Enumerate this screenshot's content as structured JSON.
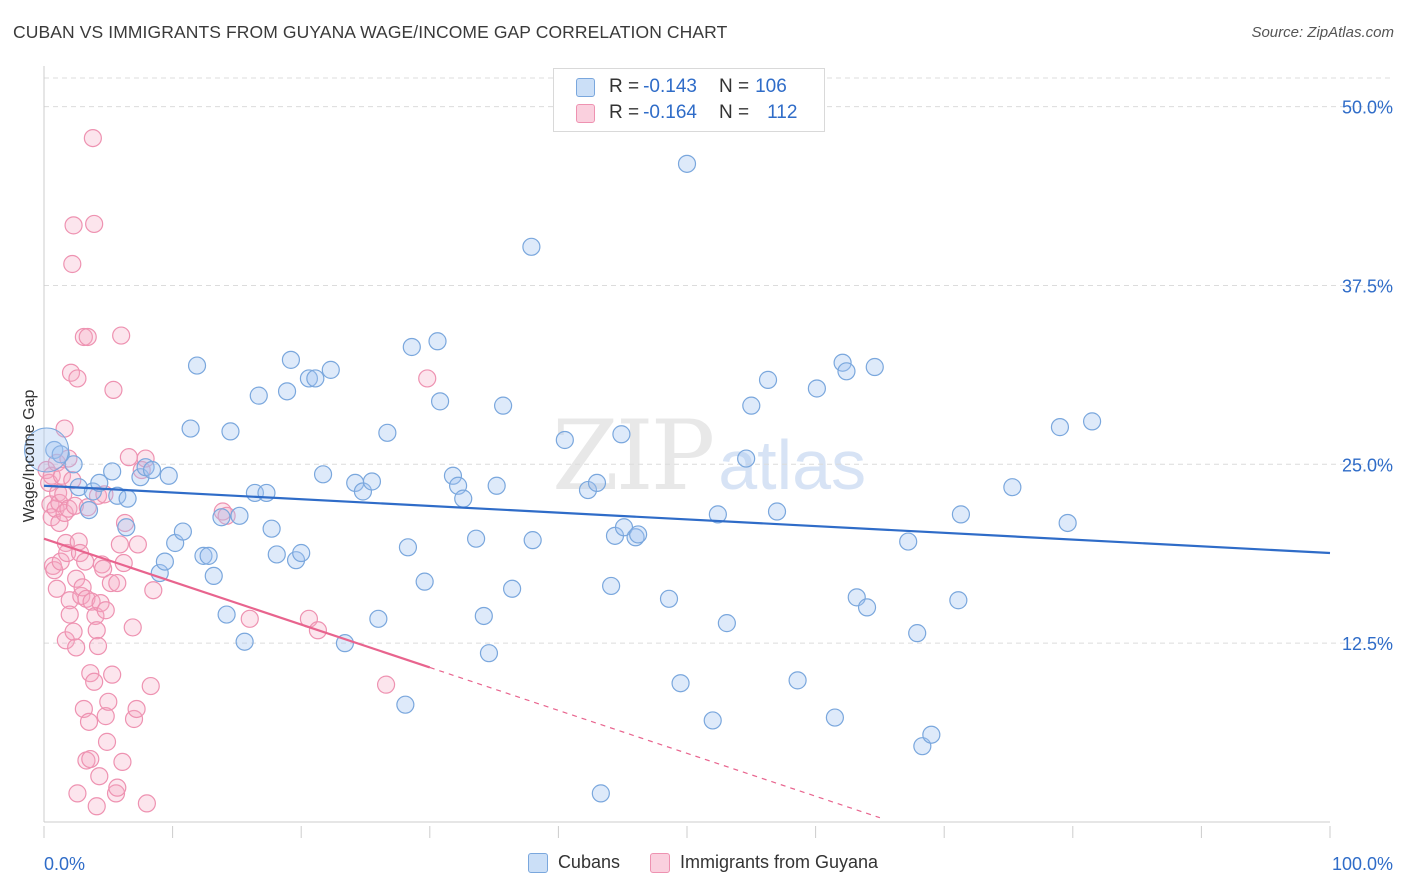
{
  "title": "CUBAN VS IMMIGRANTS FROM GUYANA WAGE/INCOME GAP CORRELATION CHART",
  "source": "Source: ZipAtlas.com",
  "watermark": {
    "zip": "ZIP",
    "atlas": "atlas"
  },
  "colors": {
    "blue": "#2f6cc8",
    "blue_fill": "rgba(160,196,240,0.35)",
    "blue_stroke": "#7aa7dd",
    "pink": "#e8648e",
    "pink_fill": "rgba(245,170,195,0.3)",
    "pink_stroke": "#ee92b1",
    "grid": "#dcdcdc",
    "axis_label": "#2f6cc8"
  },
  "legend_top": {
    "rows": [
      {
        "r_label": "R =",
        "r_value": "-0.143",
        "n_label": "N =",
        "n_value": "106",
        "series": "Cubans"
      },
      {
        "r_label": "R =",
        "r_value": "-0.164",
        "n_label": "N =",
        "n_value": "112",
        "series": "Immigrants from Guyana"
      }
    ]
  },
  "bottom_legend": [
    "Cubans",
    "Immigrants from Guyana"
  ],
  "chart_data": {
    "type": "scatter",
    "title": "CUBAN VS IMMIGRANTS FROM GUYANA WAGE/INCOME GAP CORRELATION CHART",
    "xlabel": "",
    "ylabel": "Wage/Income Gap",
    "xlim": [
      0,
      100
    ],
    "ylim": [
      0,
      52
    ],
    "x_ticks_labels": [
      "0.0%",
      "100.0%"
    ],
    "y_ticks": [
      12.5,
      25.0,
      37.5,
      50.0
    ],
    "y_ticks_labels": [
      "12.5%",
      "25.0%",
      "37.5%",
      "50.0%"
    ],
    "grid": true,
    "legend_position": "top-center",
    "series": [
      {
        "name": "Cubans",
        "color": "#2f6cc8",
        "trend": {
          "x0": 0,
          "y0": 23.5,
          "x1": 100,
          "y1": 18.8
        },
        "points": [
          [
            0.8,
            26.0
          ],
          [
            1.3,
            25.7
          ],
          [
            2.3,
            25.0
          ],
          [
            2.7,
            23.4
          ],
          [
            3.5,
            21.8
          ],
          [
            3.8,
            23.1
          ],
          [
            4.3,
            23.7
          ],
          [
            5.3,
            24.5
          ],
          [
            5.7,
            22.8
          ],
          [
            6.4,
            20.6
          ],
          [
            6.5,
            22.6
          ],
          [
            7.5,
            24.1
          ],
          [
            7.9,
            24.8
          ],
          [
            8.4,
            24.6
          ],
          [
            9.0,
            17.4
          ],
          [
            9.4,
            18.2
          ],
          [
            9.7,
            24.2
          ],
          [
            10.2,
            19.5
          ],
          [
            10.8,
            20.3
          ],
          [
            11.4,
            27.5
          ],
          [
            11.9,
            31.9
          ],
          [
            12.4,
            18.6
          ],
          [
            12.8,
            18.6
          ],
          [
            13.2,
            17.2
          ],
          [
            13.8,
            21.3
          ],
          [
            14.2,
            14.5
          ],
          [
            14.5,
            27.3
          ],
          [
            15.2,
            21.4
          ],
          [
            15.6,
            12.6
          ],
          [
            16.4,
            23.0
          ],
          [
            16.7,
            29.8
          ],
          [
            17.3,
            23.0
          ],
          [
            17.7,
            20.5
          ],
          [
            18.1,
            18.7
          ],
          [
            18.9,
            30.1
          ],
          [
            19.2,
            32.3
          ],
          [
            19.6,
            18.3
          ],
          [
            20.0,
            18.8
          ],
          [
            20.6,
            31.0
          ],
          [
            21.1,
            31.0
          ],
          [
            21.7,
            24.3
          ],
          [
            22.3,
            31.6
          ],
          [
            23.4,
            12.5
          ],
          [
            24.2,
            23.7
          ],
          [
            24.8,
            23.1
          ],
          [
            25.5,
            23.8
          ],
          [
            26.0,
            14.2
          ],
          [
            26.7,
            27.2
          ],
          [
            28.1,
            8.2
          ],
          [
            28.3,
            19.2
          ],
          [
            28.6,
            33.2
          ],
          [
            29.6,
            16.8
          ],
          [
            30.6,
            33.6
          ],
          [
            30.8,
            29.4
          ],
          [
            31.8,
            24.2
          ],
          [
            32.2,
            23.5
          ],
          [
            32.6,
            22.6
          ],
          [
            33.6,
            19.8
          ],
          [
            34.2,
            14.4
          ],
          [
            34.6,
            11.8
          ],
          [
            35.2,
            23.5
          ],
          [
            35.7,
            29.1
          ],
          [
            36.4,
            16.3
          ],
          [
            37.9,
            40.2
          ],
          [
            38.0,
            19.7
          ],
          [
            40.5,
            26.7
          ],
          [
            42.3,
            23.2
          ],
          [
            43.0,
            23.7
          ],
          [
            43.3,
            2.0
          ],
          [
            44.1,
            16.5
          ],
          [
            44.4,
            20.0
          ],
          [
            44.9,
            27.1
          ],
          [
            45.1,
            20.6
          ],
          [
            46.0,
            19.9
          ],
          [
            46.2,
            20.1
          ],
          [
            48.6,
            15.6
          ],
          [
            49.5,
            9.7
          ],
          [
            50.0,
            46.0
          ],
          [
            52.0,
            7.1
          ],
          [
            52.4,
            21.5
          ],
          [
            53.1,
            13.9
          ],
          [
            54.6,
            25.4
          ],
          [
            55.0,
            29.1
          ],
          [
            56.3,
            30.9
          ],
          [
            57.0,
            21.7
          ],
          [
            58.6,
            9.9
          ],
          [
            60.1,
            30.3
          ],
          [
            61.5,
            7.3
          ],
          [
            62.1,
            32.1
          ],
          [
            62.4,
            31.5
          ],
          [
            63.2,
            15.7
          ],
          [
            64.0,
            15.0
          ],
          [
            64.6,
            31.8
          ],
          [
            67.2,
            19.6
          ],
          [
            67.9,
            13.2
          ],
          [
            68.3,
            5.3
          ],
          [
            69.0,
            6.1
          ],
          [
            71.1,
            15.5
          ],
          [
            71.3,
            21.5
          ],
          [
            75.3,
            23.4
          ],
          [
            79.0,
            27.6
          ],
          [
            79.6,
            20.9
          ],
          [
            81.5,
            28.0
          ]
        ]
      },
      {
        "name": "Immigrants from Guyana",
        "color": "#e8648e",
        "trend": {
          "x0": 0,
          "y0": 19.8,
          "x1": 30.0,
          "y1": 10.8,
          "dash_to": {
            "x": 65.0,
            "y": 0.3
          }
        },
        "points": [
          [
            0.2,
            24.6
          ],
          [
            0.4,
            23.7
          ],
          [
            0.5,
            22.2
          ],
          [
            0.6,
            24.2
          ],
          [
            0.6,
            21.3
          ],
          [
            0.7,
            17.9
          ],
          [
            0.8,
            17.6
          ],
          [
            0.9,
            21.9
          ],
          [
            1.0,
            16.3
          ],
          [
            1.0,
            25.1
          ],
          [
            1.1,
            23.0
          ],
          [
            1.2,
            22.3
          ],
          [
            1.2,
            20.9
          ],
          [
            1.3,
            18.2
          ],
          [
            1.4,
            24.2
          ],
          [
            1.5,
            22.9
          ],
          [
            1.6,
            21.6
          ],
          [
            1.6,
            27.5
          ],
          [
            1.7,
            19.5
          ],
          [
            1.7,
            12.7
          ],
          [
            1.8,
            18.8
          ],
          [
            1.9,
            21.9
          ],
          [
            1.9,
            25.4
          ],
          [
            2.0,
            15.5
          ],
          [
            2.0,
            14.5
          ],
          [
            2.1,
            31.4
          ],
          [
            2.2,
            23.9
          ],
          [
            2.2,
            39.0
          ],
          [
            2.3,
            13.3
          ],
          [
            2.3,
            41.7
          ],
          [
            2.4,
            22.1
          ],
          [
            2.5,
            17.0
          ],
          [
            2.5,
            12.2
          ],
          [
            2.6,
            31.0
          ],
          [
            2.6,
            2.0
          ],
          [
            2.7,
            19.6
          ],
          [
            2.8,
            18.8
          ],
          [
            2.9,
            15.8
          ],
          [
            3.0,
            16.4
          ],
          [
            3.1,
            33.9
          ],
          [
            3.1,
            7.9
          ],
          [
            3.2,
            18.2
          ],
          [
            3.3,
            4.3
          ],
          [
            3.3,
            15.6
          ],
          [
            3.4,
            22.0
          ],
          [
            3.4,
            33.9
          ],
          [
            3.5,
            7.0
          ],
          [
            3.6,
            10.4
          ],
          [
            3.6,
            4.4
          ],
          [
            3.7,
            15.4
          ],
          [
            3.8,
            47.8
          ],
          [
            3.9,
            41.8
          ],
          [
            3.9,
            9.8
          ],
          [
            4.0,
            14.4
          ],
          [
            4.1,
            13.4
          ],
          [
            4.1,
            1.1
          ],
          [
            4.2,
            22.8
          ],
          [
            4.2,
            12.3
          ],
          [
            4.3,
            3.2
          ],
          [
            4.4,
            15.3
          ],
          [
            4.5,
            18.0
          ],
          [
            4.6,
            17.7
          ],
          [
            4.7,
            22.9
          ],
          [
            4.8,
            14.8
          ],
          [
            4.8,
            7.4
          ],
          [
            4.9,
            5.6
          ],
          [
            5.0,
            8.4
          ],
          [
            5.2,
            16.7
          ],
          [
            5.3,
            10.3
          ],
          [
            5.4,
            30.2
          ],
          [
            5.6,
            2.0
          ],
          [
            5.7,
            16.7
          ],
          [
            5.7,
            2.4
          ],
          [
            5.9,
            19.4
          ],
          [
            6.0,
            34.0
          ],
          [
            6.1,
            4.2
          ],
          [
            6.2,
            18.1
          ],
          [
            6.3,
            20.9
          ],
          [
            6.6,
            25.5
          ],
          [
            6.9,
            13.6
          ],
          [
            7.0,
            7.2
          ],
          [
            7.2,
            7.9
          ],
          [
            7.3,
            19.4
          ],
          [
            7.6,
            24.6
          ],
          [
            7.9,
            25.4
          ],
          [
            8.0,
            1.3
          ],
          [
            8.3,
            9.5
          ],
          [
            8.5,
            16.2
          ],
          [
            13.9,
            21.7
          ],
          [
            14.2,
            21.4
          ],
          [
            16.0,
            14.2
          ],
          [
            20.6,
            14.2
          ],
          [
            21.3,
            13.4
          ],
          [
            26.6,
            9.6
          ],
          [
            29.8,
            31.0
          ]
        ]
      }
    ]
  }
}
